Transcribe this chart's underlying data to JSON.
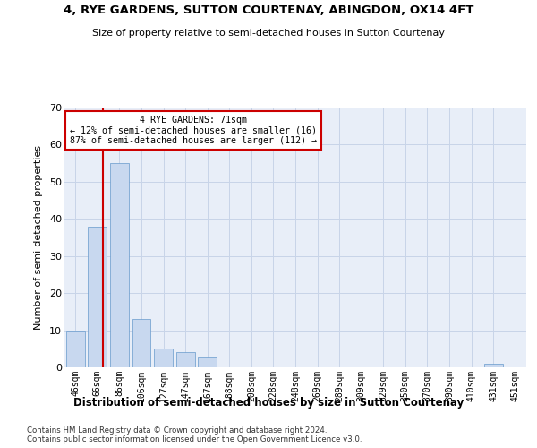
{
  "title": "4, RYE GARDENS, SUTTON COURTENAY, ABINGDON, OX14 4FT",
  "subtitle": "Size of property relative to semi-detached houses in Sutton Courtenay",
  "xlabel": "Distribution of semi-detached houses by size in Sutton Courtenay",
  "ylabel": "Number of semi-detached properties",
  "bar_values": [
    10,
    38,
    55,
    13,
    5,
    4,
    3,
    0,
    0,
    0,
    0,
    0,
    0,
    0,
    0,
    0,
    0,
    0,
    0,
    1,
    0
  ],
  "bin_labels": [
    "46sqm",
    "66sqm",
    "86sqm",
    "106sqm",
    "127sqm",
    "147sqm",
    "167sqm",
    "188sqm",
    "208sqm",
    "228sqm",
    "248sqm",
    "269sqm",
    "289sqm",
    "309sqm",
    "329sqm",
    "350sqm",
    "370sqm",
    "390sqm",
    "410sqm",
    "431sqm",
    "451sqm"
  ],
  "bar_color": "#c8d8ef",
  "bar_edge_color": "#6699cc",
  "vline_color": "#cc0000",
  "vline_x": 1.25,
  "annotation_box_color": "#ffffff",
  "annotation_box_edge": "#cc0000",
  "property_label": "4 RYE GARDENS: 71sqm",
  "smaller_pct": 12,
  "smaller_count": 16,
  "larger_pct": 87,
  "larger_count": 112,
  "ylim": [
    0,
    70
  ],
  "yticks": [
    0,
    10,
    20,
    30,
    40,
    50,
    60,
    70
  ],
  "grid_color": "#c8d4e8",
  "bg_color": "#e8eef8",
  "footer_line1": "Contains HM Land Registry data © Crown copyright and database right 2024.",
  "footer_line2": "Contains public sector information licensed under the Open Government Licence v3.0."
}
